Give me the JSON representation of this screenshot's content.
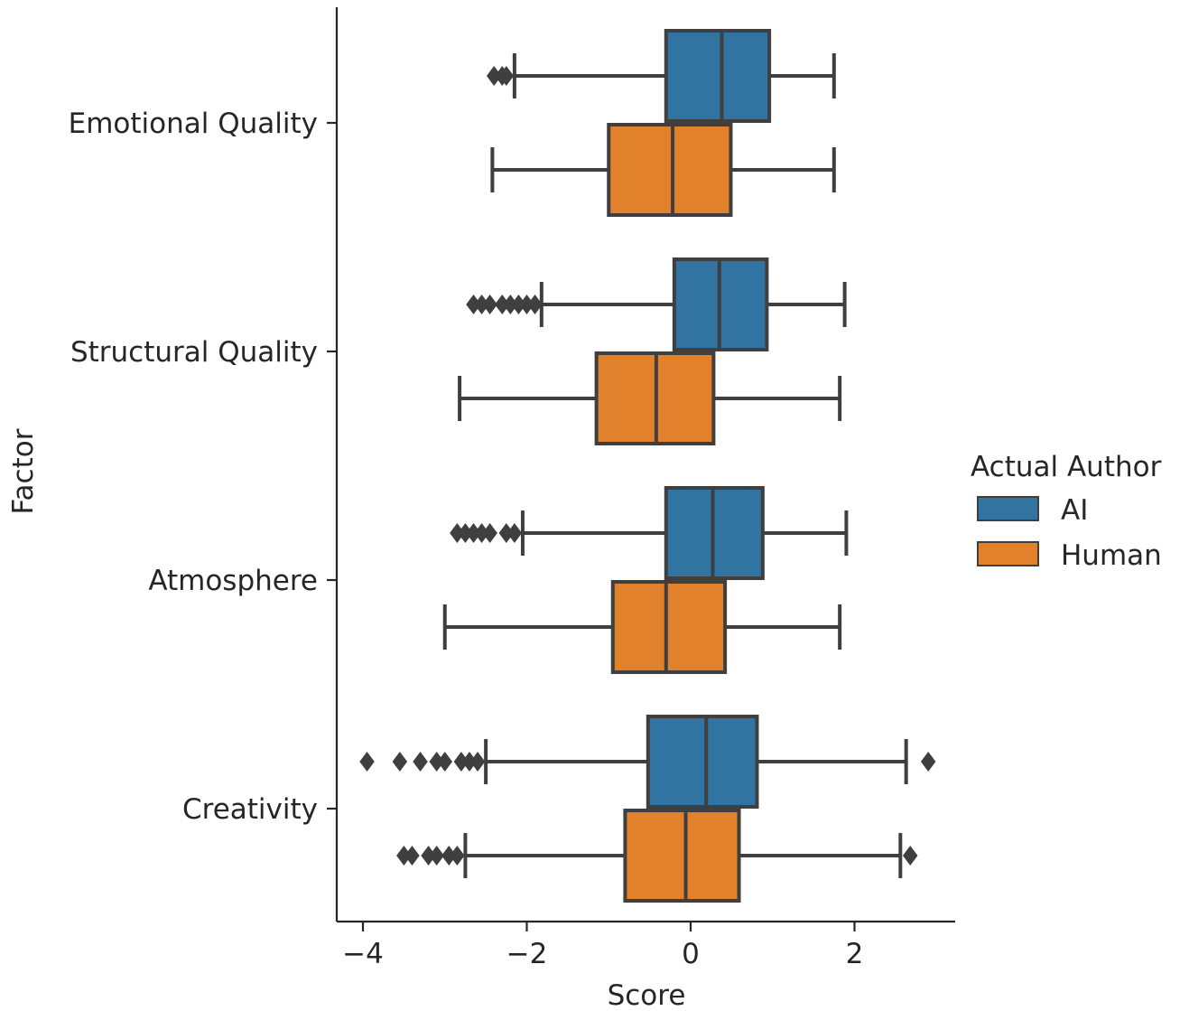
{
  "chart_data": {
    "type": "boxplot",
    "orientation": "horizontal",
    "xlabel": "Score",
    "ylabel": "Factor",
    "xlim": [
      -4.3,
      3.2
    ],
    "xticks": [
      -4,
      -2,
      0,
      2
    ],
    "xtick_labels": [
      "−4",
      "−2",
      "0",
      "2"
    ],
    "categories": [
      "Emotional Quality",
      "Structural Quality",
      "Atmosphere",
      "Creativity"
    ],
    "legend": {
      "title": "Actual Author",
      "placement": "center-right, outside plot",
      "entries": [
        {
          "label": "AI",
          "color": "#3274a1"
        },
        {
          "label": "Human",
          "color": "#e1812c"
        }
      ]
    },
    "series": [
      {
        "name": "AI",
        "color": "#3274a1",
        "boxes": [
          {
            "category": "Emotional Quality",
            "whisker_low": -2.15,
            "q1": -0.3,
            "median": 0.38,
            "q3": 0.96,
            "whisker_high": 1.75,
            "outliers": [
              -2.4,
              -2.3,
              -2.25
            ]
          },
          {
            "category": "Structural Quality",
            "whisker_low": -1.82,
            "q1": -0.2,
            "median": 0.35,
            "q3": 0.93,
            "whisker_high": 1.88,
            "outliers": [
              -2.65,
              -2.55,
              -2.45,
              -2.3,
              -2.2,
              -2.1,
              -2.0,
              -1.9
            ]
          },
          {
            "category": "Atmosphere",
            "whisker_low": -2.05,
            "q1": -0.3,
            "median": 0.27,
            "q3": 0.88,
            "whisker_high": 1.9,
            "outliers": [
              -2.85,
              -2.75,
              -2.65,
              -2.55,
              -2.45,
              -2.25,
              -2.15
            ]
          },
          {
            "category": "Creativity",
            "whisker_low": -2.5,
            "q1": -0.52,
            "median": 0.19,
            "q3": 0.81,
            "whisker_high": 2.63,
            "outliers": [
              -3.95,
              -3.55,
              -3.3,
              -3.1,
              -3.0,
              -2.8,
              -2.7,
              -2.6,
              2.9
            ]
          }
        ]
      },
      {
        "name": "Human",
        "color": "#e1812c",
        "boxes": [
          {
            "category": "Emotional Quality",
            "whisker_low": -2.42,
            "q1": -1.0,
            "median": -0.22,
            "q3": 0.49,
            "whisker_high": 1.75,
            "outliers": []
          },
          {
            "category": "Structural Quality",
            "whisker_low": -2.82,
            "q1": -1.15,
            "median": -0.42,
            "q3": 0.28,
            "whisker_high": 1.82,
            "outliers": []
          },
          {
            "category": "Atmosphere",
            "whisker_low": -3.0,
            "q1": -0.95,
            "median": -0.3,
            "q3": 0.42,
            "whisker_high": 1.82,
            "outliers": []
          },
          {
            "category": "Creativity",
            "whisker_low": -2.75,
            "q1": -0.8,
            "median": -0.06,
            "q3": 0.59,
            "whisker_high": 2.56,
            "outliers": [
              -3.5,
              -3.4,
              -3.2,
              -3.1,
              -2.95,
              -2.85,
              2.68
            ]
          }
        ]
      }
    ]
  }
}
